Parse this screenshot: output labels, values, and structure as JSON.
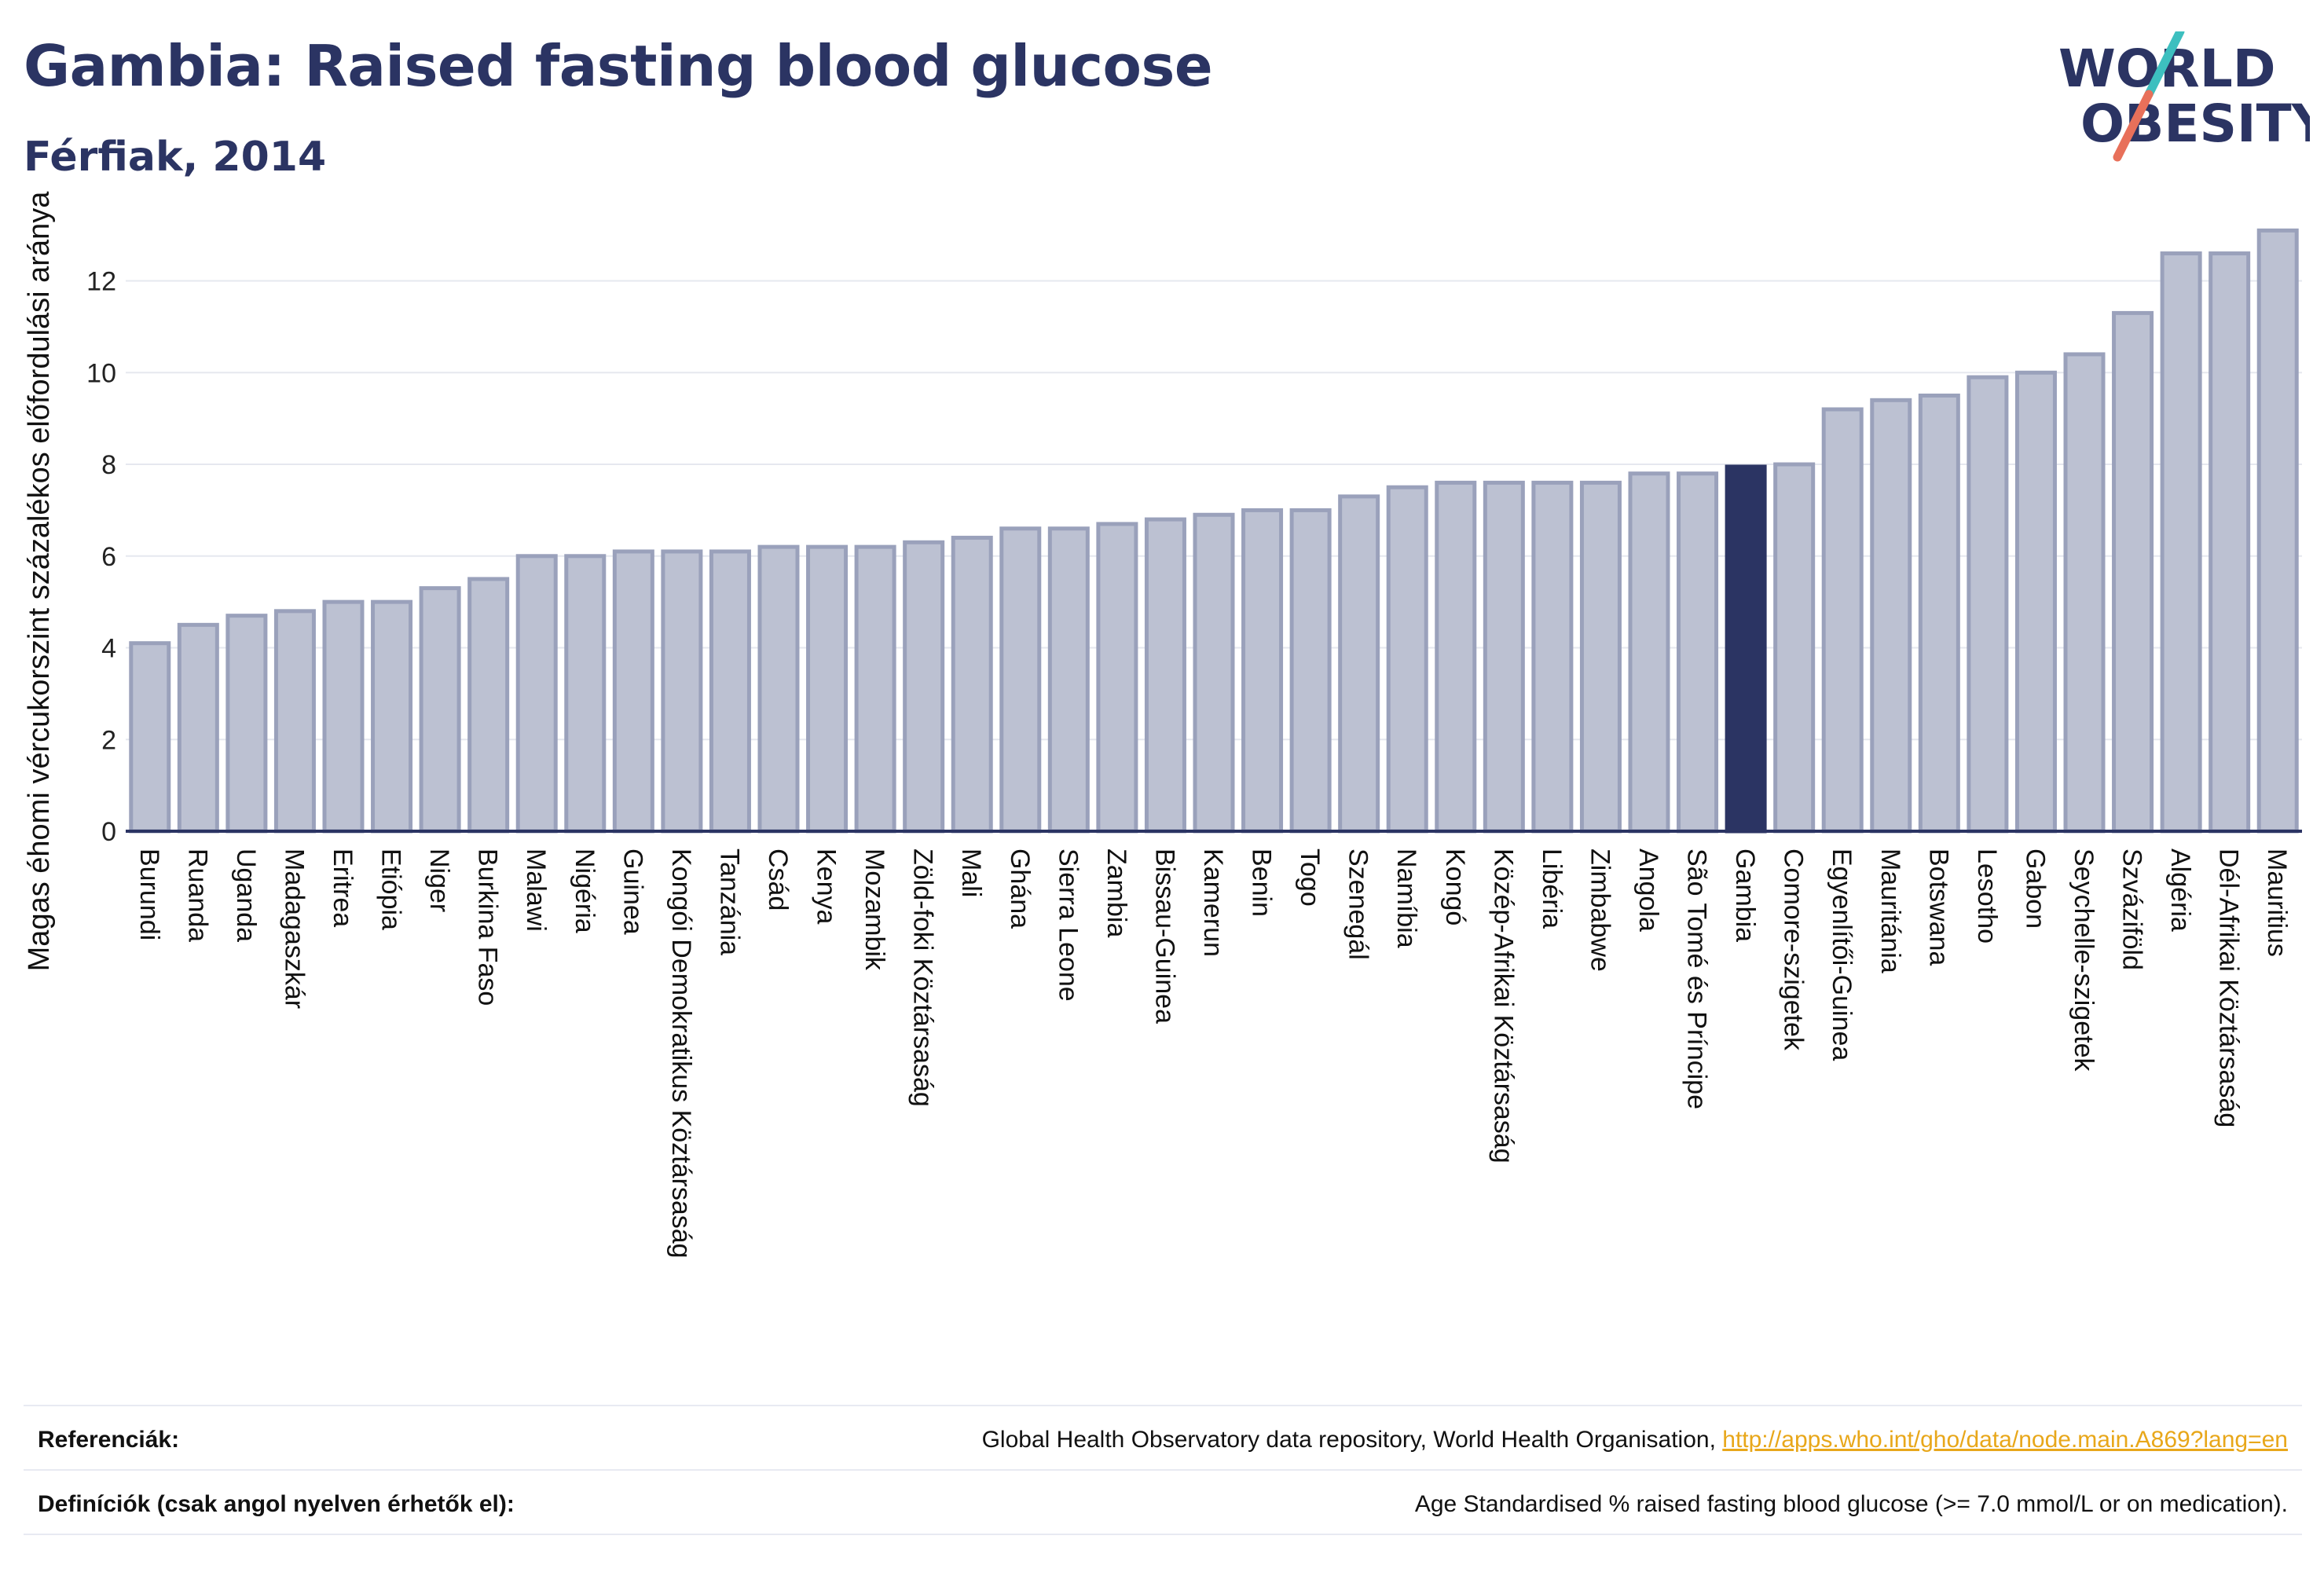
{
  "header": {
    "title": "Gambia: Raised fasting blood glucose",
    "subtitle": "Férfiak, 2014"
  },
  "logo": {
    "line1": "WORLD",
    "line2": "OBESITY",
    "colors": {
      "text": "#2b3463",
      "slash_top": "#3dbfbf",
      "slash_bottom": "#e8705a"
    }
  },
  "colors": {
    "bar": "#bcc1d2",
    "bar_edge": "#9aa1bb",
    "highlight": "#2b3463",
    "grid": "#e6e8ef",
    "axis": "#2b3463"
  },
  "chart_data": {
    "type": "bar",
    "title": "Gambia: Raised fasting blood glucose",
    "subtitle": "Férfiak, 2014",
    "xlabel": "",
    "ylabel": "Magas éhomi vércukorszint százalékos előfordulási aránya",
    "ylim": [
      0,
      13.5
    ],
    "yticks": [
      0,
      2,
      4,
      6,
      8,
      10,
      12
    ],
    "grid": true,
    "highlight": "Gambia",
    "categories": [
      "Burundi",
      "Ruanda",
      "Uganda",
      "Madagaszkár",
      "Eritrea",
      "Etiópia",
      "Niger",
      "Burkina Faso",
      "Malawi",
      "Nigéria",
      "Guinea",
      "Kongói Demokratikus Köztársaság",
      "Tanzánia",
      "Csád",
      "Kenya",
      "Mozambik",
      "Zöld-foki Köztársaság",
      "Mali",
      "Ghána",
      "Sierra Leone",
      "Zambia",
      "Bissau-Guinea",
      "Kamerun",
      "Benin",
      "Togo",
      "Szenegál",
      "Namíbia",
      "Kongó",
      "Közép-Afrikai Köztársaság",
      "Libéria",
      "Zimbabwe",
      "Angola",
      "São Tomé és Príncipe",
      "Gambia",
      "Comore-szigetek",
      "Egyenlítői-Guinea",
      "Mauritánia",
      "Botswana",
      "Lesotho",
      "Gabon",
      "Seychelle-szigetek",
      "Szváziföld",
      "Algéria",
      "Dél-Afrikai Köztársaság",
      "Mauritius"
    ],
    "values": [
      4.1,
      4.5,
      4.7,
      4.8,
      5.0,
      5.0,
      5.3,
      5.5,
      6.0,
      6.0,
      6.1,
      6.1,
      6.1,
      6.2,
      6.2,
      6.2,
      6.3,
      6.4,
      6.6,
      6.6,
      6.7,
      6.8,
      6.9,
      7.0,
      7.0,
      7.3,
      7.5,
      7.6,
      7.6,
      7.6,
      7.6,
      7.8,
      7.8,
      7.95,
      8.0,
      9.2,
      9.4,
      9.5,
      9.9,
      10.0,
      10.4,
      11.3,
      12.6,
      12.6,
      13.1
    ]
  },
  "footer": {
    "references_label": "Referenciák:",
    "references_text": "Global Health Observatory data repository, World Health Organisation, ",
    "references_link": "http://apps.who.int/gho/data/node.main.A869?lang=en",
    "definitions_label": "Definíciók (csak angol nyelven érhetők el):",
    "definitions_text": "Age Standardised % raised fasting blood glucose (>= 7.0 mmol/L or on medication)."
  }
}
